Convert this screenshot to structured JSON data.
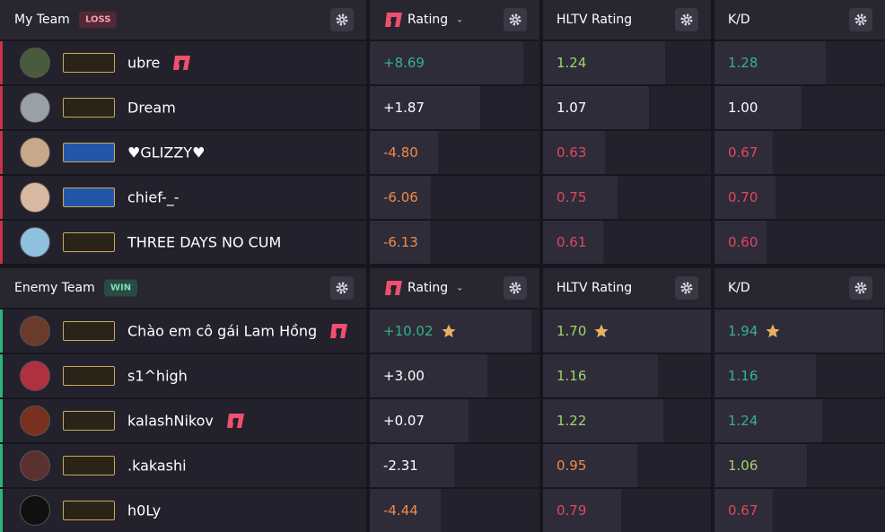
{
  "teams": [
    {
      "label": "My Team",
      "result": "LOSS",
      "result_color": "#c8324a",
      "columns": [
        "Rating",
        "HLTV Rating",
        "K/D"
      ],
      "rows": [
        {
          "name": "ubre",
          "leetify_icon": true,
          "cells": [
            "+8.69",
            "1.24",
            "1.28"
          ],
          "colors": [
            "#35b386",
            "#9fd36b",
            "#35b386"
          ],
          "avatar": "#4a5a3c"
        },
        {
          "name": "Dream",
          "leetify_icon": false,
          "cells": [
            "+1.87",
            "1.07",
            "1.00"
          ],
          "colors": [
            "#ffffff",
            "#ffffff",
            "#ffffff"
          ],
          "avatar": "#9aa0a8"
        },
        {
          "name": "♥GLIZZY♥",
          "leetify_icon": false,
          "cells": [
            "-4.80",
            "0.63",
            "0.67"
          ],
          "colors": [
            "#f08a4b",
            "#e0475e",
            "#e0475e"
          ],
          "avatar": "#c9a88a"
        },
        {
          "name": "chief-_-",
          "leetify_icon": false,
          "cells": [
            "-6.06",
            "0.75",
            "0.70"
          ],
          "colors": [
            "#f08a4b",
            "#e0475e",
            "#e0475e"
          ],
          "avatar": "#d8b8a0"
        },
        {
          "name": "THREE DAYS NO CUM",
          "leetify_icon": false,
          "cells": [
            "-6.13",
            "0.61",
            "0.60"
          ],
          "colors": [
            "#f08a4b",
            "#e0475e",
            "#e0475e"
          ],
          "avatar": "#8fc0e0"
        }
      ]
    },
    {
      "label": "Enemy Team",
      "result": "WIN",
      "result_color": "#2bb37d",
      "columns": [
        "Rating",
        "HLTV Rating",
        "K/D"
      ],
      "rows": [
        {
          "name": "Chào em cô gái Lam Hồng",
          "leetify_icon": true,
          "star": true,
          "cells": [
            "+10.02",
            "1.70",
            "1.94"
          ],
          "colors": [
            "#35b386",
            "#9fd36b",
            "#35b386"
          ],
          "avatar": "#6a3a2a"
        },
        {
          "name": "s1^high",
          "leetify_icon": false,
          "cells": [
            "+3.00",
            "1.16",
            "1.16"
          ],
          "colors": [
            "#ffffff",
            "#9fd36b",
            "#35b386"
          ],
          "avatar": "#b03040"
        },
        {
          "name": "kalashNikov",
          "leetify_icon": true,
          "cells": [
            "+0.07",
            "1.22",
            "1.24"
          ],
          "colors": [
            "#ffffff",
            "#9fd36b",
            "#35b386"
          ],
          "avatar": "#7a3020"
        },
        {
          "name": ".kakashi",
          "leetify_icon": false,
          "cells": [
            "-2.31",
            "0.95",
            "1.06"
          ],
          "colors": [
            "#ffffff",
            "#f08a4b",
            "#9fd36b"
          ],
          "avatar": "#5a3030"
        },
        {
          "name": "h0Ly",
          "leetify_icon": false,
          "cells": [
            "-4.44",
            "0.79",
            "0.67"
          ],
          "colors": [
            "#f08a4b",
            "#e0475e",
            "#e0475e"
          ],
          "avatar": "#101010"
        }
      ]
    }
  ]
}
